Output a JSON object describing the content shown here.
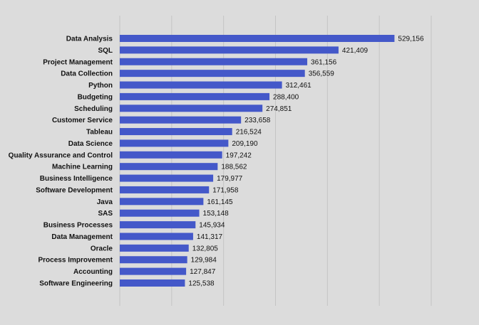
{
  "chart_data": {
    "type": "bar",
    "orientation": "horizontal",
    "categories": [
      "Data Analysis",
      "SQL",
      "Project Management",
      "Data Collection",
      "Python",
      "Budgeting",
      "Scheduling",
      "Customer Service",
      "Tableau",
      "Data Science",
      "Quality Assurance and Control",
      "Machine Learning",
      "Business Intelligence",
      "Software Development",
      "Java",
      "SAS",
      "Business Processes",
      "Data Management",
      "Oracle",
      "Process Improvement",
      "Accounting",
      "Software Engineering"
    ],
    "values": [
      529156,
      421409,
      361156,
      356559,
      312461,
      288400,
      274851,
      233658,
      216524,
      209190,
      197242,
      188562,
      179977,
      171958,
      161145,
      153148,
      145934,
      141317,
      132805,
      129984,
      127847,
      125538
    ],
    "value_labels": [
      "529,156",
      "421,409",
      "361,156",
      "356,559",
      "312,461",
      "288,400",
      "274,851",
      "233,658",
      "216,524",
      "209,190",
      "197,242",
      "188,562",
      "179,977",
      "171,958",
      "161,145",
      "153,148",
      "145,934",
      "141,317",
      "132,805",
      "129,984",
      "127,847",
      "125,538"
    ],
    "title": "",
    "xlabel": "",
    "ylabel": "",
    "xlim": [
      0,
      600000
    ],
    "grid": "vertical",
    "legend": "none",
    "colors": {
      "bar": "#4458c9",
      "background": "#dcdcdc",
      "grid": "#c4c4c4"
    }
  }
}
